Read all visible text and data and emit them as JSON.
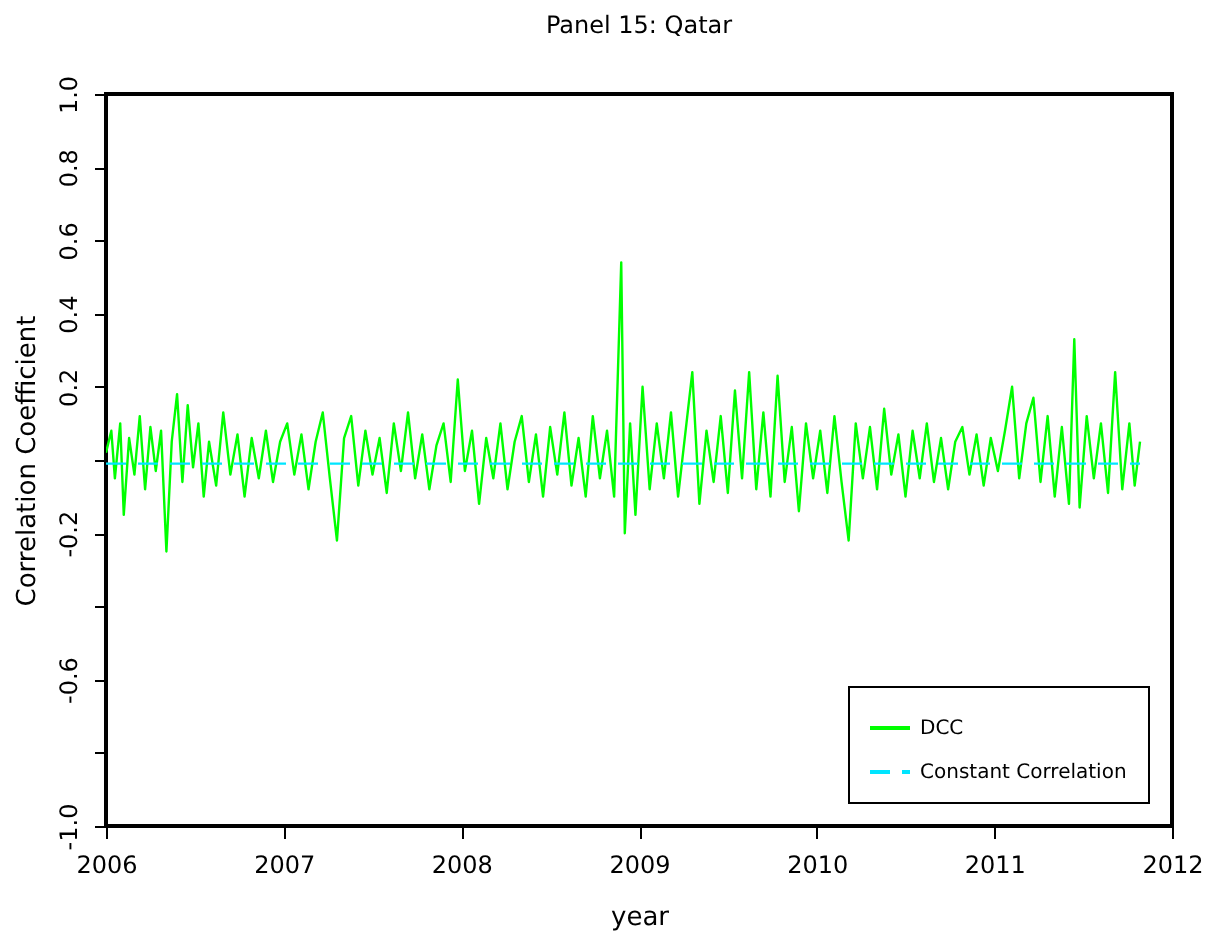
{
  "chart_data": {
    "type": "line",
    "title": "Panel 15: Qatar",
    "xlabel": "year",
    "ylabel": "Correlation Coefficient",
    "xlim": [
      2006,
      2012
    ],
    "xticks": [
      2006,
      2007,
      2008,
      2009,
      2010,
      2011,
      2012
    ],
    "ylim": [
      -1.0,
      1.0
    ],
    "yticks": [
      {
        "value": -1.0,
        "label": "-1.0"
      },
      {
        "value": -0.8,
        "label": null
      },
      {
        "value": -0.6,
        "label": "-0.6"
      },
      {
        "value": -0.4,
        "label": null
      },
      {
        "value": -0.2,
        "label": "-0.2"
      },
      {
        "value": 0,
        "label": null
      },
      {
        "value": 0.2,
        "label": "0.2"
      },
      {
        "value": 0.4,
        "label": "0.4"
      },
      {
        "value": 0.6,
        "label": "0.6"
      },
      {
        "value": 0.8,
        "label": "0.8"
      },
      {
        "value": 1.0,
        "label": "1.0"
      }
    ],
    "grid": false,
    "legend": "bottom right",
    "marker": "none",
    "series": [
      {
        "name": "DCC",
        "color": "#00ff00",
        "line_style": "solid",
        "x": [
          2006.0,
          2006.03,
          2006.05,
          2006.08,
          2006.1,
          2006.13,
          2006.16,
          2006.19,
          2006.22,
          2006.25,
          2006.28,
          2006.31,
          2006.34,
          2006.37,
          2006.4,
          2006.43,
          2006.46,
          2006.49,
          2006.52,
          2006.55,
          2006.58,
          2006.62,
          2006.66,
          2006.7,
          2006.74,
          2006.78,
          2006.82,
          2006.86,
          2006.9,
          2006.94,
          2006.98,
          2007.02,
          2007.06,
          2007.1,
          2007.14,
          2007.18,
          2007.22,
          2007.26,
          2007.3,
          2007.34,
          2007.38,
          2007.42,
          2007.46,
          2007.5,
          2007.54,
          2007.58,
          2007.62,
          2007.66,
          2007.7,
          2007.74,
          2007.78,
          2007.82,
          2007.86,
          2007.9,
          2007.94,
          2007.98,
          2008.02,
          2008.06,
          2008.1,
          2008.14,
          2008.18,
          2008.22,
          2008.26,
          2008.3,
          2008.34,
          2008.38,
          2008.42,
          2008.46,
          2008.5,
          2008.54,
          2008.58,
          2008.62,
          2008.66,
          2008.7,
          2008.74,
          2008.78,
          2008.82,
          2008.86,
          2008.9,
          2008.92,
          2008.95,
          2008.98,
          2009.02,
          2009.06,
          2009.1,
          2009.14,
          2009.18,
          2009.22,
          2009.26,
          2009.3,
          2009.34,
          2009.38,
          2009.42,
          2009.46,
          2009.5,
          2009.54,
          2009.58,
          2009.62,
          2009.66,
          2009.7,
          2009.74,
          2009.78,
          2009.82,
          2009.86,
          2009.9,
          2009.94,
          2009.98,
          2010.02,
          2010.06,
          2010.1,
          2010.14,
          2010.18,
          2010.22,
          2010.26,
          2010.3,
          2010.34,
          2010.38,
          2010.42,
          2010.46,
          2010.5,
          2010.54,
          2010.58,
          2010.62,
          2010.66,
          2010.7,
          2010.74,
          2010.78,
          2010.82,
          2010.86,
          2010.9,
          2010.94,
          2010.98,
          2011.02,
          2011.06,
          2011.1,
          2011.14,
          2011.18,
          2011.22,
          2011.26,
          2011.3,
          2011.34,
          2011.38,
          2011.42,
          2011.45,
          2011.48,
          2011.52,
          2011.56,
          2011.6,
          2011.64,
          2011.68,
          2011.72,
          2011.76,
          2011.79,
          2011.82
        ],
        "values": [
          0.02,
          0.08,
          -0.05,
          0.1,
          -0.15,
          0.06,
          -0.04,
          0.12,
          -0.08,
          0.09,
          -0.03,
          0.08,
          -0.25,
          0.05,
          0.18,
          -0.06,
          0.15,
          -0.02,
          0.1,
          -0.1,
          0.05,
          -0.07,
          0.13,
          -0.04,
          0.07,
          -0.1,
          0.06,
          -0.05,
          0.08,
          -0.06,
          0.05,
          0.1,
          -0.04,
          0.07,
          -0.08,
          0.05,
          0.13,
          -0.05,
          -0.22,
          0.06,
          0.12,
          -0.07,
          0.08,
          -0.04,
          0.06,
          -0.09,
          0.1,
          -0.03,
          0.13,
          -0.05,
          0.07,
          -0.08,
          0.04,
          0.1,
          -0.06,
          0.22,
          -0.03,
          0.08,
          -0.12,
          0.06,
          -0.05,
          0.1,
          -0.08,
          0.05,
          0.12,
          -0.06,
          0.07,
          -0.1,
          0.09,
          -0.04,
          0.13,
          -0.07,
          0.06,
          -0.1,
          0.12,
          -0.05,
          0.08,
          -0.1,
          0.54,
          -0.2,
          0.1,
          -0.15,
          0.2,
          -0.08,
          0.1,
          -0.05,
          0.13,
          -0.1,
          0.07,
          0.24,
          -0.12,
          0.08,
          -0.06,
          0.12,
          -0.09,
          0.19,
          -0.05,
          0.24,
          -0.08,
          0.13,
          -0.1,
          0.23,
          -0.06,
          0.09,
          -0.14,
          0.1,
          -0.05,
          0.08,
          -0.09,
          0.12,
          -0.06,
          -0.22,
          0.1,
          -0.05,
          0.09,
          -0.08,
          0.14,
          -0.04,
          0.07,
          -0.1,
          0.08,
          -0.05,
          0.1,
          -0.06,
          0.06,
          -0.08,
          0.05,
          0.09,
          -0.04,
          0.07,
          -0.07,
          0.06,
          -0.03,
          0.08,
          0.2,
          -0.05,
          0.1,
          0.17,
          -0.06,
          0.12,
          -0.1,
          0.09,
          -0.12,
          0.33,
          -0.13,
          0.12,
          -0.05,
          0.1,
          -0.09,
          0.24,
          -0.08,
          0.1,
          -0.07,
          0.05
        ]
      },
      {
        "name": "Constant Correlation",
        "color": "#00e5ff",
        "line_style": "dashed",
        "x": [
          2006.0,
          2011.82
        ],
        "values": [
          -0.01,
          -0.01
        ]
      }
    ]
  }
}
